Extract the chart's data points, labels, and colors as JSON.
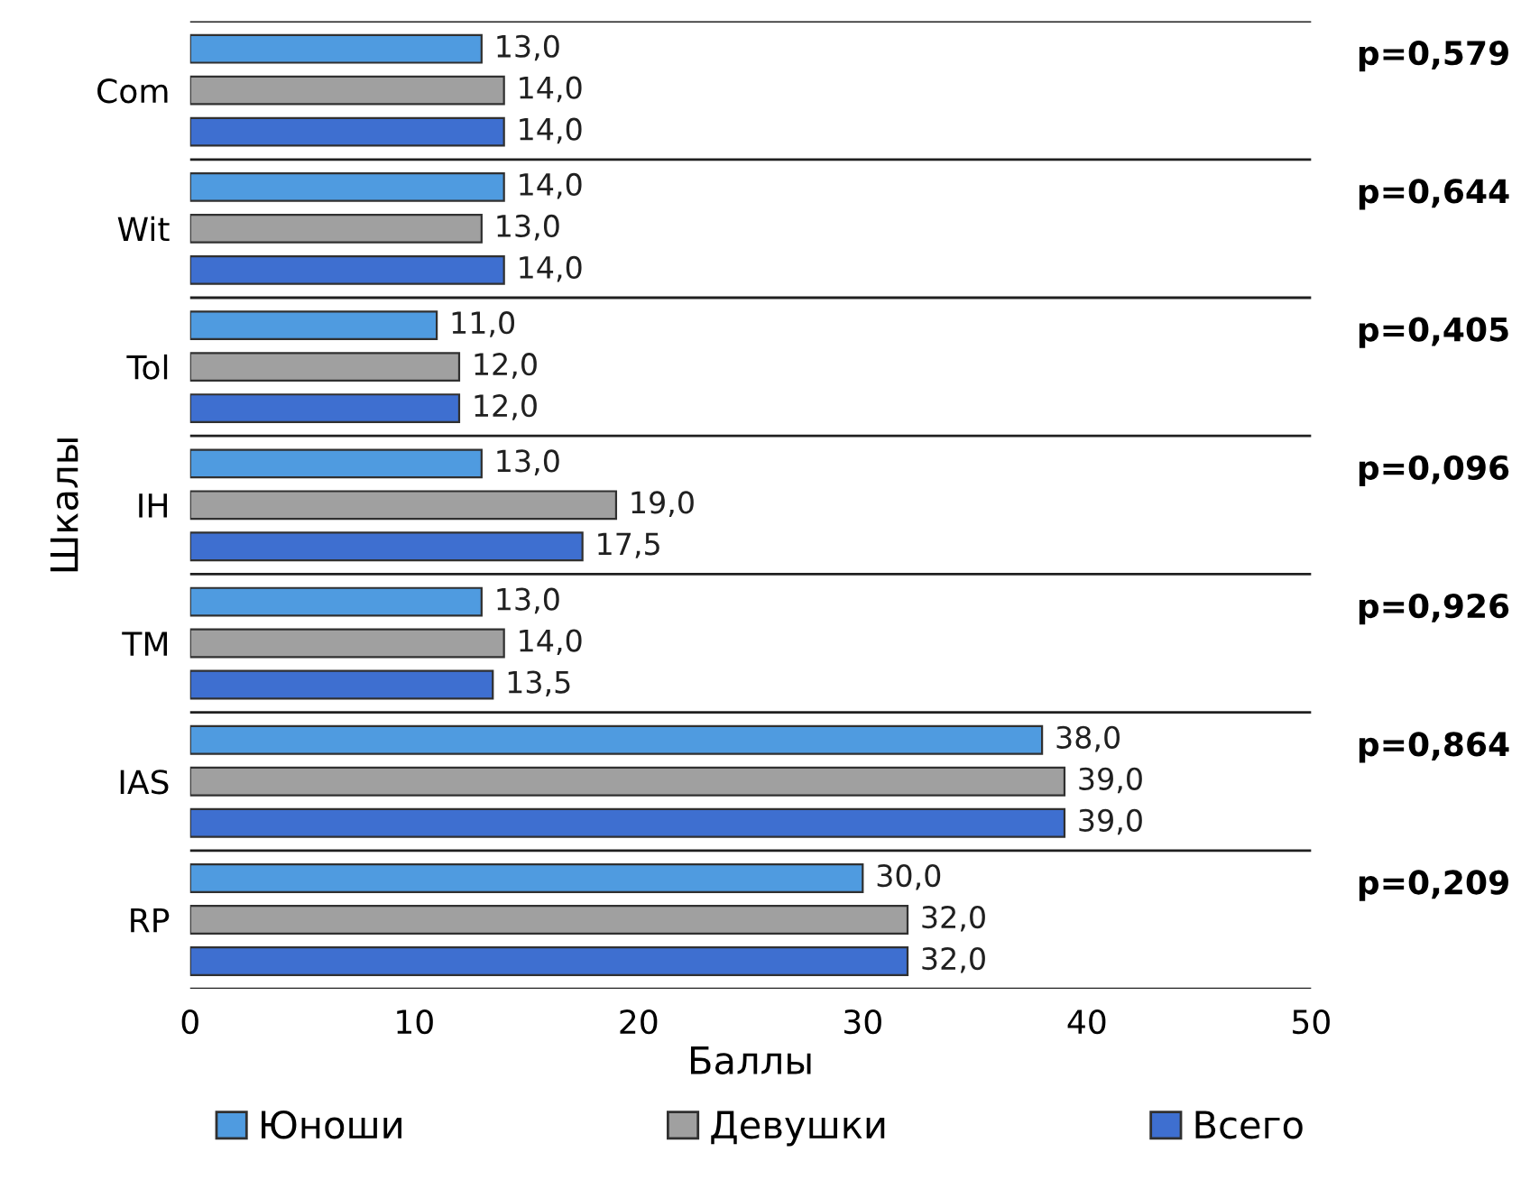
{
  "chart_data": {
    "type": "bar",
    "orientation": "horizontal",
    "xlabel": "Баллы",
    "ylabel": "Шкалы",
    "categories": [
      "Com",
      "Wit",
      "Tol",
      "IH",
      "TM",
      "IAS",
      "RP"
    ],
    "series": [
      {
        "name": "Юноши",
        "color": "#4f9be0",
        "values": [
          13,
          14,
          11,
          13,
          13,
          38,
          30
        ],
        "value_labels": [
          "13,0",
          "14,0",
          "11,0",
          "13,0",
          "13,0",
          "38,0",
          "30,0"
        ]
      },
      {
        "name": "Девушки",
        "color": "#a0a0a0",
        "values": [
          14,
          13,
          12,
          19,
          14,
          39,
          32
        ],
        "value_labels": [
          "14,0",
          "13,0",
          "12,0",
          "19,0",
          "14,0",
          "39,0",
          "32,0"
        ]
      },
      {
        "name": "Всего",
        "color": "#3e6fd0",
        "values": [
          14,
          14,
          12,
          17.5,
          13.5,
          39,
          32
        ],
        "value_labels": [
          "14,0",
          "14,0",
          "12,0",
          "17,5",
          "13,5",
          "39,0",
          "32,0"
        ]
      }
    ],
    "xlim": [
      0,
      50
    ],
    "xticks": [
      0,
      10,
      20,
      30,
      40,
      50
    ],
    "grid": "y",
    "legend": "bottom",
    "annotations": [
      "p=0,579",
      "p=0,644",
      "p=0,405",
      "p=0,096",
      "p=0,926",
      "p=0,864",
      "p=0,209"
    ]
  }
}
